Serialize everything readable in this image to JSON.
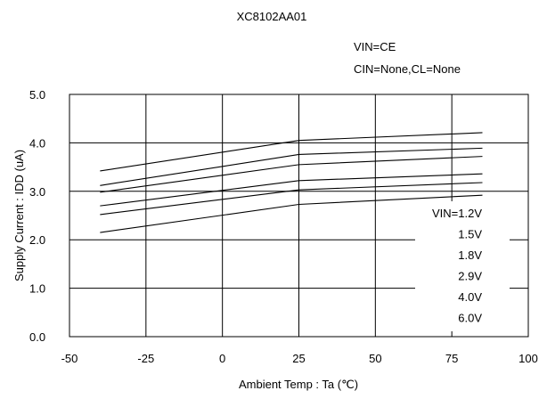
{
  "chart_data": {
    "type": "line",
    "title": "XC8102AA01",
    "conditions": [
      "VIN=CE",
      "CIN=None,CL=None"
    ],
    "xlabel": "Ambient Temp : Ta (℃)",
    "ylabel": "Supply Current : IDD (uA)",
    "xlim": [
      -50,
      100
    ],
    "ylim": [
      0.0,
      5.0
    ],
    "xticks": [
      -50,
      -25,
      0,
      25,
      50,
      75,
      100
    ],
    "xtick_labels": [
      "-50",
      "-25",
      "0",
      "25",
      "50",
      "75",
      "100"
    ],
    "yticks": [
      0,
      1,
      2,
      3,
      4,
      5
    ],
    "ytick_labels": [
      "0.0",
      "1.0",
      "2.0",
      "3.0",
      "4.0",
      "5.0"
    ],
    "grid": true,
    "legend_position": "right",
    "series": [
      {
        "name": "VIN=1.2V",
        "x": [
          -40,
          25,
          85
        ],
        "y": [
          2.15,
          2.73,
          2.92
        ]
      },
      {
        "name": "1.5V",
        "x": [
          -40,
          25,
          85
        ],
        "y": [
          2.52,
          3.03,
          3.18
        ]
      },
      {
        "name": "1.8V",
        "x": [
          -40,
          25,
          85
        ],
        "y": [
          2.7,
          3.22,
          3.36
        ]
      },
      {
        "name": "2.9V",
        "x": [
          -40,
          25,
          85
        ],
        "y": [
          2.98,
          3.55,
          3.72
        ]
      },
      {
        "name": "4.0V",
        "x": [
          -40,
          25,
          85
        ],
        "y": [
          3.12,
          3.76,
          3.89
        ]
      },
      {
        "name": "6.0V",
        "x": [
          -40,
          25,
          85
        ],
        "y": [
          3.42,
          4.05,
          4.21
        ]
      }
    ]
  }
}
